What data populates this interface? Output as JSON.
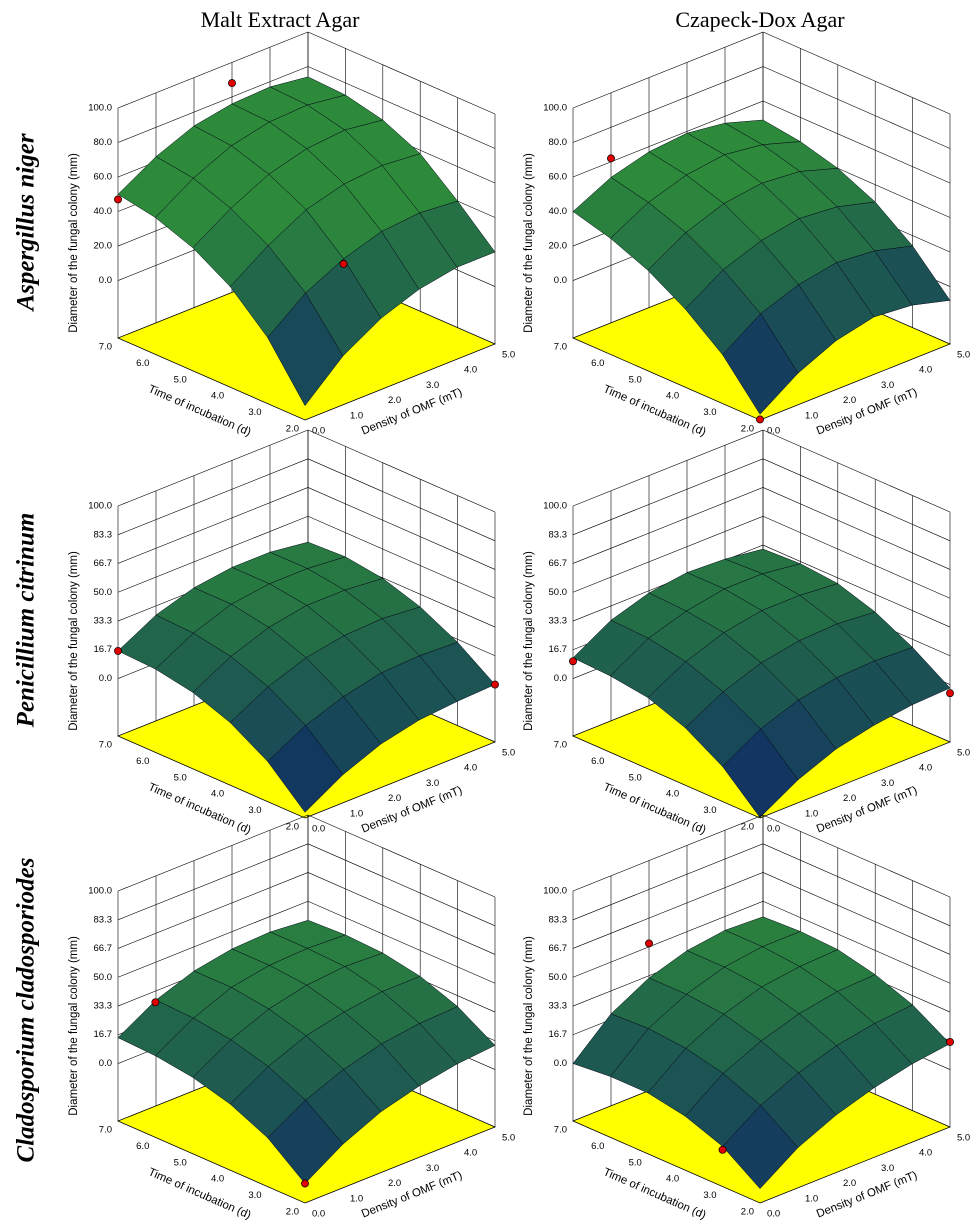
{
  "column_titles": [
    "Malt Extract Agar",
    "Czapeck-Dox Agar"
  ],
  "row_titles": [
    "Aspergillus niger",
    "Penicillium citrinum",
    "Cladosporium cladosporiodes"
  ],
  "chart_data": [
    {
      "type": "surface3d",
      "xlabel": "Density of OMF (mT)",
      "ylabel": "Time of incubation (d)",
      "zlabel": "Diameter of the fungal colony (mm)",
      "xlim": [
        0,
        5
      ],
      "ylim": [
        2,
        7
      ],
      "zlim": [
        -33.3,
        100
      ],
      "xticks": [
        {
          "value": 0,
          "label": "0.0"
        },
        {
          "value": 1,
          "label": "1.0"
        },
        {
          "value": 2,
          "label": "2.0"
        },
        {
          "value": 3,
          "label": "3.0"
        },
        {
          "value": 4,
          "label": "4.0"
        },
        {
          "value": 5,
          "label": "5.0"
        }
      ],
      "yticks": [
        {
          "value": 2,
          "label": "2.0"
        },
        {
          "value": 3,
          "label": "3.0"
        },
        {
          "value": 4,
          "label": "4.0"
        },
        {
          "value": 5,
          "label": "5.0"
        },
        {
          "value": 6,
          "label": "6.0"
        },
        {
          "value": 7,
          "label": "7.0"
        }
      ],
      "zticks": [
        {
          "value": 0,
          "label": "0.0"
        },
        {
          "value": 20,
          "label": "20.0"
        },
        {
          "value": 40,
          "label": "40.0"
        },
        {
          "value": 60,
          "label": "60.0"
        },
        {
          "value": 80,
          "label": "80.0"
        },
        {
          "value": 100,
          "label": "100.0"
        }
      ],
      "x": [
        0,
        1,
        2,
        3,
        4,
        5
      ],
      "y": [
        2,
        3,
        4,
        5,
        6,
        7
      ],
      "z": [
        [
          -25,
          -5,
          8,
          16,
          20,
          20
        ],
        [
          5,
          22,
          33,
          40,
          42,
          40
        ],
        [
          25,
          40,
          52,
          58,
          60,
          58
        ],
        [
          38,
          52,
          63,
          69,
          71,
          68
        ],
        [
          46,
          60,
          70,
          75,
          76,
          73
        ],
        [
          50,
          63,
          72,
          76,
          77,
          74
        ]
      ],
      "points": {
        "x": [
          0,
          3,
          2
        ],
        "y": [
          7,
          7,
          3
        ],
        "z": [
          47,
          88,
          30
        ]
      },
      "surface_colors": [
        "#0b1f6b",
        "#2d8a3a"
      ],
      "floor_color": "#ffff00",
      "point_color": "#e00000"
    },
    {
      "type": "surface3d",
      "xlabel": "Density of OMF (mT)",
      "ylabel": "Time of incubation (d)",
      "zlabel": "Diameter of the fungal colony (mm)",
      "xlim": [
        0,
        5
      ],
      "ylim": [
        2,
        7
      ],
      "zlim": [
        -33.3,
        100
      ],
      "xticks": [
        {
          "value": 0,
          "label": "0.0"
        },
        {
          "value": 1,
          "label": "1.0"
        },
        {
          "value": 2,
          "label": "2.0"
        },
        {
          "value": 3,
          "label": "3.0"
        },
        {
          "value": 4,
          "label": "4.0"
        },
        {
          "value": 5,
          "label": "5.0"
        }
      ],
      "yticks": [
        {
          "value": 2,
          "label": "2.0"
        },
        {
          "value": 3,
          "label": "3.0"
        },
        {
          "value": 4,
          "label": "4.0"
        },
        {
          "value": 5,
          "label": "5.0"
        },
        {
          "value": 6,
          "label": "6.0"
        },
        {
          "value": 7,
          "label": "7.0"
        }
      ],
      "zticks": [
        {
          "value": 0,
          "label": "0.0"
        },
        {
          "value": 20,
          "label": "20.0"
        },
        {
          "value": 40,
          "label": "40.0"
        },
        {
          "value": 60,
          "label": "60.0"
        },
        {
          "value": 80,
          "label": "80.0"
        },
        {
          "value": 100,
          "label": "100.0"
        }
      ],
      "x": [
        0,
        1,
        2,
        3,
        4,
        5
      ],
      "y": [
        2,
        3,
        4,
        5,
        6,
        7
      ],
      "z": [
        [
          -30,
          -15,
          -5,
          0,
          -2,
          -8
        ],
        [
          -5,
          10,
          18,
          22,
          20,
          14
        ],
        [
          12,
          26,
          34,
          38,
          36,
          30
        ],
        [
          25,
          38,
          46,
          49,
          47,
          40
        ],
        [
          34,
          46,
          53,
          56,
          53,
          46
        ],
        [
          40,
          51,
          57,
          59,
          56,
          49
        ]
      ],
      "points": {
        "x": [
          1,
          0
        ],
        "y": [
          7,
          2
        ],
        "z": [
          62,
          -33
        ]
      },
      "surface_colors": [
        "#0b1f6b",
        "#2d8a3a"
      ],
      "floor_color": "#ffff00",
      "point_color": "#e00000"
    },
    {
      "type": "surface3d",
      "xlabel": "Density of OMF (mT)",
      "ylabel": "Time of incubation (d)",
      "zlabel": "Diameter of the fungal colony (mm)",
      "xlim": [
        0,
        5
      ],
      "ylim": [
        2,
        7
      ],
      "zlim": [
        -33.3,
        100
      ],
      "xticks": [
        {
          "value": 0,
          "label": "0.0"
        },
        {
          "value": 1,
          "label": "1.0"
        },
        {
          "value": 2,
          "label": "2.0"
        },
        {
          "value": 3,
          "label": "3.0"
        },
        {
          "value": 4,
          "label": "4.0"
        },
        {
          "value": 5,
          "label": "5.0"
        }
      ],
      "yticks": [
        {
          "value": 2,
          "label": "2.0"
        },
        {
          "value": 3,
          "label": "3.0"
        },
        {
          "value": 4,
          "label": "4.0"
        },
        {
          "value": 5,
          "label": "5.0"
        },
        {
          "value": 6,
          "label": "6.0"
        },
        {
          "value": 7,
          "label": "7.0"
        }
      ],
      "zticks": [
        {
          "value": 0,
          "label": "0.0"
        },
        16.7,
        33.3,
        {
          "value": 50,
          "label": "50.0"
        },
        66.7,
        83.3,
        {
          "value": 100,
          "label": "100.0"
        }
      ],
      "x": [
        0,
        1,
        2,
        3,
        4,
        5
      ],
      "y": [
        2,
        3,
        4,
        5,
        6,
        7
      ],
      "z": [
        [
          -30,
          -17,
          -8,
          -3,
          -1,
          0
        ],
        [
          -10,
          2,
          10,
          15,
          16,
          15
        ],
        [
          3,
          15,
          23,
          27,
          28,
          26
        ],
        [
          11,
          23,
          31,
          35,
          35,
          33
        ],
        [
          15,
          27,
          35,
          38,
          38,
          36
        ],
        [
          16,
          28,
          35,
          38,
          38,
          35
        ]
      ],
      "points": {
        "x": [
          0,
          5
        ],
        "y": [
          7,
          2
        ],
        "z": [
          16,
          0
        ]
      },
      "surface_colors": [
        "#0b1f6b",
        "#2d8a3a"
      ],
      "floor_color": "#ffff00",
      "point_color": "#e00000"
    },
    {
      "type": "surface3d",
      "xlabel": "Density of OMF (mT)",
      "ylabel": "Time of incubation (d)",
      "zlabel": "Diameter of the fungal colony (mm)",
      "xlim": [
        0,
        5
      ],
      "ylim": [
        2,
        7
      ],
      "zlim": [
        -33.3,
        100
      ],
      "xticks": [
        {
          "value": 0,
          "label": "0.0"
        },
        {
          "value": 1,
          "label": "1.0"
        },
        {
          "value": 2,
          "label": "2.0"
        },
        {
          "value": 3,
          "label": "3.0"
        },
        {
          "value": 4,
          "label": "4.0"
        },
        {
          "value": 5,
          "label": "5.0"
        }
      ],
      "yticks": [
        {
          "value": 2,
          "label": "2.0"
        },
        {
          "value": 3,
          "label": "3.0"
        },
        {
          "value": 4,
          "label": "4.0"
        },
        {
          "value": 5,
          "label": "5.0"
        },
        {
          "value": 6,
          "label": "6.0"
        },
        {
          "value": 7,
          "label": "7.0"
        }
      ],
      "zticks": [
        {
          "value": 0,
          "label": "0.0"
        },
        16.7,
        33.3,
        {
          "value": 50,
          "label": "50.0"
        },
        66.7,
        83.3,
        {
          "value": 100,
          "label": "100.0"
        }
      ],
      "x": [
        0,
        1,
        2,
        3,
        4,
        5
      ],
      "y": [
        2,
        3,
        4,
        5,
        6,
        7
      ],
      "z": [
        [
          -33,
          -20,
          -11,
          -6,
          -3,
          -2
        ],
        [
          -13,
          0,
          8,
          12,
          13,
          12
        ],
        [
          0,
          12,
          20,
          24,
          25,
          23
        ],
        [
          8,
          20,
          28,
          32,
          32,
          30
        ],
        [
          11,
          24,
          31,
          35,
          35,
          32
        ],
        [
          12,
          25,
          32,
          35,
          34,
          31
        ]
      ],
      "points": {
        "x": [
          0,
          5
        ],
        "y": [
          7,
          2
        ],
        "z": [
          10,
          -5
        ]
      },
      "surface_colors": [
        "#0b1f6b",
        "#2d8a3a"
      ],
      "floor_color": "#ffff00",
      "point_color": "#e00000"
    },
    {
      "type": "surface3d",
      "xlabel": "Density of OMF (mT)",
      "ylabel": "Time of incubation (d)",
      "zlabel": "Diameter of the fungal colony (mm)",
      "xlim": [
        0,
        5
      ],
      "ylim": [
        2,
        7
      ],
      "zlim": [
        -33.3,
        100
      ],
      "xticks": [
        {
          "value": 0,
          "label": "0.0"
        },
        {
          "value": 1,
          "label": "1.0"
        },
        {
          "value": 2,
          "label": "2.0"
        },
        {
          "value": 3,
          "label": "3.0"
        },
        {
          "value": 4,
          "label": "4.0"
        },
        {
          "value": 5,
          "label": "5.0"
        }
      ],
      "yticks": [
        {
          "value": 2,
          "label": "2.0"
        },
        {
          "value": 3,
          "label": "3.0"
        },
        {
          "value": 4,
          "label": "4.0"
        },
        {
          "value": 5,
          "label": "5.0"
        },
        {
          "value": 6,
          "label": "6.0"
        },
        {
          "value": 7,
          "label": "7.0"
        }
      ],
      "zticks": [
        {
          "value": 0,
          "label": "0.0"
        },
        16.7,
        33.3,
        {
          "value": 50,
          "label": "50.0"
        },
        66.7,
        83.3,
        {
          "value": 100,
          "label": "100.0"
        }
      ],
      "x": [
        0,
        1,
        2,
        3,
        4,
        5
      ],
      "y": [
        2,
        3,
        4,
        5,
        6,
        7
      ],
      "z": [
        [
          -22,
          -8,
          2,
          8,
          12,
          14
        ],
        [
          -5,
          8,
          17,
          23,
          26,
          27
        ],
        [
          5,
          18,
          27,
          32,
          35,
          35
        ],
        [
          11,
          24,
          33,
          38,
          40,
          39
        ],
        [
          14,
          27,
          36,
          40,
          41,
          40
        ],
        [
          15,
          28,
          36,
          40,
          41,
          39
        ]
      ],
      "points": {
        "x": [
          0,
          0
        ],
        "y": [
          6,
          2
        ],
        "z": [
          45,
          -22
        ]
      },
      "surface_colors": [
        "#0b1f6b",
        "#2d8a3a"
      ],
      "floor_color": "#ffff00",
      "point_color": "#e00000"
    },
    {
      "type": "surface3d",
      "xlabel": "Density of OMF (mT)",
      "ylabel": "Time of incubation (d)",
      "zlabel": "Diameter of the fungal colony (mm)",
      "xlim": [
        0,
        5
      ],
      "ylim": [
        2,
        7
      ],
      "zlim": [
        -33.3,
        100
      ],
      "xticks": [
        {
          "value": 0,
          "label": "0.0"
        },
        {
          "value": 1,
          "label": "1.0"
        },
        {
          "value": 2,
          "label": "2.0"
        },
        {
          "value": 3,
          "label": "3.0"
        },
        {
          "value": 4,
          "label": "4.0"
        },
        {
          "value": 5,
          "label": "5.0"
        }
      ],
      "yticks": [
        {
          "value": 2,
          "label": "2.0"
        },
        {
          "value": 3,
          "label": "3.0"
        },
        {
          "value": 4,
          "label": "4.0"
        },
        {
          "value": 5,
          "label": "5.0"
        },
        {
          "value": 6,
          "label": "6.0"
        },
        {
          "value": 7,
          "label": "7.0"
        }
      ],
      "zticks": [
        {
          "value": 0,
          "label": "0.0"
        },
        16.7,
        33.3,
        {
          "value": 50,
          "label": "50.0"
        },
        66.7,
        83.3,
        {
          "value": 100,
          "label": "100.0"
        }
      ],
      "x": [
        0,
        1,
        2,
        3,
        4,
        5
      ],
      "y": [
        2,
        3,
        4,
        5,
        6,
        7
      ],
      "z": [
        [
          -25,
          -10,
          0,
          7,
          12,
          15
        ],
        [
          -10,
          5,
          15,
          22,
          26,
          28
        ],
        [
          -2,
          14,
          24,
          31,
          35,
          36
        ],
        [
          2,
          19,
          30,
          37,
          40,
          41
        ],
        [
          2,
          21,
          32,
          39,
          42,
          42
        ],
        [
          0,
          20,
          32,
          39,
          42,
          41
        ]
      ],
      "points": {
        "x": [
          2,
          0,
          5
        ],
        "y": [
          7,
          3,
          2
        ],
        "z": [
          52,
          -12,
          16
        ]
      },
      "surface_colors": [
        "#0b1f6b",
        "#2d8a3a"
      ],
      "floor_color": "#ffff00",
      "point_color": "#e00000"
    }
  ]
}
